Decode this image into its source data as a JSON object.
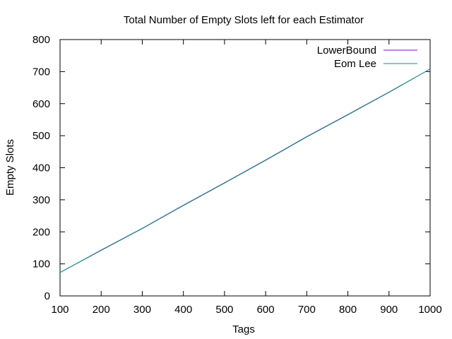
{
  "chart_data": {
    "type": "line",
    "title": "Total Number of Empty Slots left for each Estimator",
    "xlabel": "Tags",
    "ylabel": "Empty Slots",
    "xlim": [
      100,
      1000
    ],
    "ylim": [
      0,
      800
    ],
    "x_ticks": [
      100,
      200,
      300,
      400,
      500,
      600,
      700,
      800,
      900,
      1000
    ],
    "y_ticks": [
      0,
      100,
      200,
      300,
      400,
      500,
      600,
      700,
      800
    ],
    "legend_position": "top-right",
    "grid": false,
    "series": [
      {
        "name": "LowerBound",
        "color": "#9400d3",
        "x": [
          100,
          200,
          300,
          400,
          500,
          600,
          700,
          800,
          900,
          1000
        ],
        "y": [
          73,
          143,
          211,
          283,
          353,
          424,
          497,
          566,
          636,
          708
        ]
      },
      {
        "name": "Eom Lee",
        "color": "#009e73",
        "x": [
          100,
          200,
          300,
          400,
          500,
          600,
          700,
          800,
          900,
          1000
        ],
        "y": [
          73,
          142,
          210,
          282,
          352,
          423,
          496,
          565,
          635,
          708
        ]
      }
    ]
  }
}
